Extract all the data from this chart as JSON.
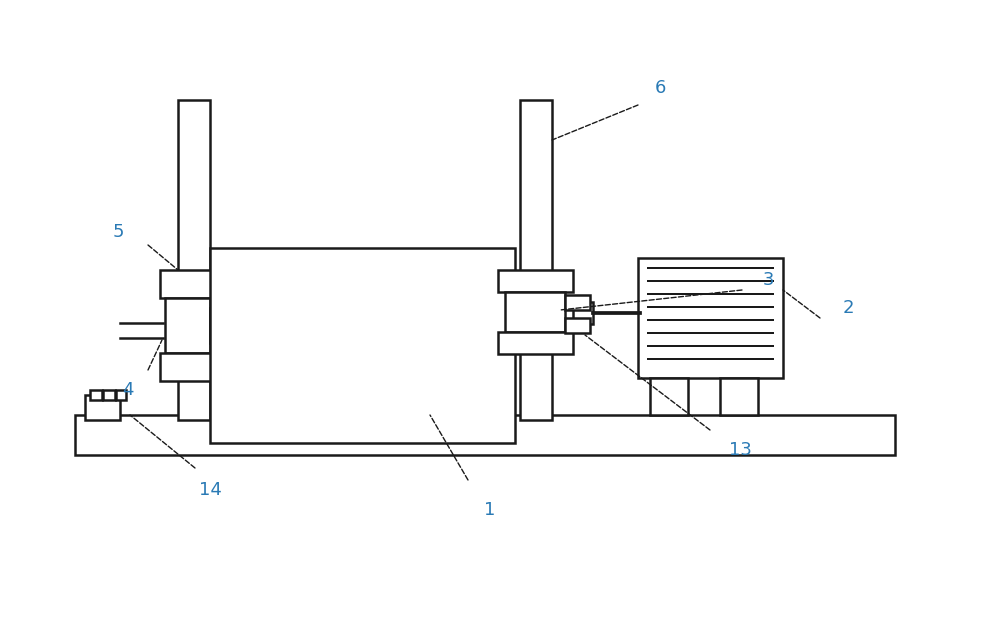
{
  "bg_color": "#ffffff",
  "line_color": "#1a1a1a",
  "label_color": "#2a7ab5",
  "lw": 1.8,
  "fig_width": 9.98,
  "fig_height": 6.31,
  "label_fontsize": 13
}
